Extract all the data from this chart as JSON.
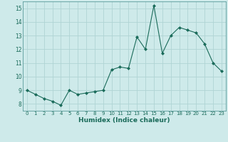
{
  "x": [
    0,
    1,
    2,
    3,
    4,
    5,
    6,
    7,
    8,
    9,
    10,
    11,
    12,
    13,
    14,
    15,
    16,
    17,
    18,
    19,
    20,
    21,
    22,
    23
  ],
  "y": [
    9.0,
    8.7,
    8.4,
    8.2,
    7.9,
    9.0,
    8.7,
    8.8,
    8.9,
    9.0,
    10.5,
    10.7,
    10.6,
    12.9,
    12.0,
    15.2,
    11.7,
    13.0,
    13.6,
    13.4,
    13.2,
    12.4,
    11.0,
    10.4
  ],
  "xlabel": "Humidex (Indice chaleur)",
  "xlim": [
    -0.5,
    23.5
  ],
  "ylim": [
    7.5,
    15.5
  ],
  "yticks": [
    8,
    9,
    10,
    11,
    12,
    13,
    14,
    15
  ],
  "xticks": [
    0,
    1,
    2,
    3,
    4,
    5,
    6,
    7,
    8,
    9,
    10,
    11,
    12,
    13,
    14,
    15,
    16,
    17,
    18,
    19,
    20,
    21,
    22,
    23
  ],
  "line_color": "#1a6b5a",
  "marker": "D",
  "marker_size": 2.0,
  "bg_color": "#ceeaea",
  "grid_color": "#b0d4d4",
  "spine_color": "#5a9a9a"
}
